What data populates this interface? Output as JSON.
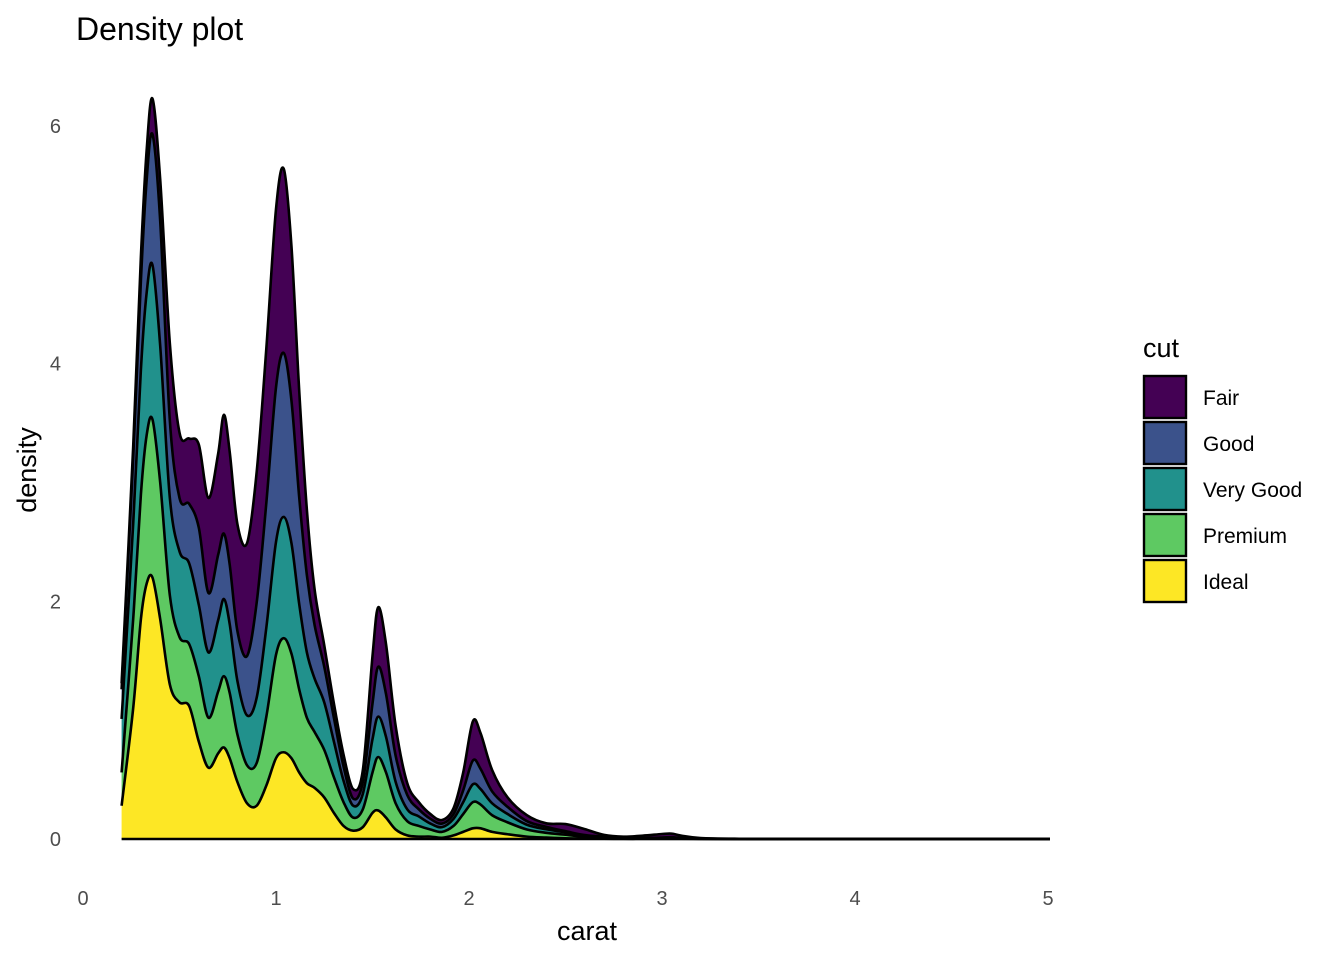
{
  "chart_data": {
    "type": "area",
    "stacked": true,
    "title": "Density plot",
    "xlabel": "carat",
    "ylabel": "density",
    "xlim": [
      0,
      5
    ],
    "ylim": [
      0,
      6.2
    ],
    "x_ticks": [
      0,
      1,
      2,
      3,
      4,
      5
    ],
    "y_ticks": [
      0,
      2,
      4,
      6
    ],
    "grid": false,
    "legend": {
      "title": "cut",
      "position": "right"
    },
    "x": [
      0.2,
      0.26,
      0.3,
      0.33,
      0.36,
      0.4,
      0.45,
      0.5,
      0.55,
      0.6,
      0.65,
      0.7,
      0.73,
      0.76,
      0.8,
      0.85,
      0.9,
      0.95,
      1.0,
      1.04,
      1.08,
      1.12,
      1.16,
      1.2,
      1.25,
      1.3,
      1.35,
      1.4,
      1.45,
      1.5,
      1.53,
      1.57,
      1.62,
      1.68,
      1.74,
      1.8,
      1.86,
      1.92,
      1.97,
      2.02,
      2.06,
      2.12,
      2.2,
      2.3,
      2.4,
      2.5,
      2.6,
      2.7,
      2.8,
      2.9,
      3.0,
      3.05,
      3.1,
      3.2,
      3.4,
      3.7,
      4.0,
      4.5,
      5.01
    ],
    "series": [
      {
        "name": "Ideal",
        "color": "#fde725",
        "values": [
          0.28,
          1.1,
          1.85,
          2.15,
          2.2,
          1.85,
          1.3,
          1.15,
          1.12,
          0.82,
          0.6,
          0.72,
          0.77,
          0.68,
          0.48,
          0.3,
          0.28,
          0.45,
          0.68,
          0.73,
          0.68,
          0.56,
          0.47,
          0.43,
          0.35,
          0.22,
          0.11,
          0.07,
          0.1,
          0.22,
          0.24,
          0.18,
          0.08,
          0.03,
          0.02,
          0.02,
          0.01,
          0.03,
          0.06,
          0.09,
          0.09,
          0.06,
          0.04,
          0.02,
          0.012,
          0.006,
          0.003,
          0.002,
          0.001,
          0.001,
          0.001,
          0.001,
          0.001,
          0,
          0,
          0,
          0,
          0,
          0
        ]
      },
      {
        "name": "Premium",
        "color": "#5ec962",
        "values": [
          0.28,
          0.75,
          1.05,
          1.25,
          1.33,
          1.15,
          0.75,
          0.55,
          0.52,
          0.55,
          0.42,
          0.52,
          0.6,
          0.55,
          0.4,
          0.32,
          0.36,
          0.58,
          0.87,
          0.96,
          0.88,
          0.7,
          0.55,
          0.47,
          0.4,
          0.3,
          0.2,
          0.11,
          0.15,
          0.34,
          0.45,
          0.38,
          0.22,
          0.12,
          0.09,
          0.06,
          0.05,
          0.08,
          0.15,
          0.22,
          0.2,
          0.14,
          0.1,
          0.06,
          0.04,
          0.03,
          0.015,
          0.008,
          0.004,
          0.003,
          0.004,
          0.005,
          0.003,
          0.001,
          0,
          0,
          0,
          0,
          0
        ]
      },
      {
        "name": "Very Good",
        "color": "#21918c",
        "values": [
          0.45,
          0.8,
          1.05,
          1.2,
          1.3,
          1.15,
          0.82,
          0.72,
          0.68,
          0.6,
          0.55,
          0.6,
          0.65,
          0.58,
          0.45,
          0.42,
          0.55,
          0.75,
          0.95,
          1.02,
          0.93,
          0.72,
          0.55,
          0.45,
          0.4,
          0.3,
          0.18,
          0.1,
          0.13,
          0.28,
          0.34,
          0.3,
          0.18,
          0.1,
          0.08,
          0.05,
          0.04,
          0.06,
          0.1,
          0.15,
          0.13,
          0.1,
          0.07,
          0.04,
          0.03,
          0.02,
          0.01,
          0.006,
          0.003,
          0.002,
          0.003,
          0.004,
          0.002,
          0.001,
          0,
          0,
          0,
          0,
          0
        ]
      },
      {
        "name": "Good",
        "color": "#3b528b",
        "values": [
          0.25,
          0.55,
          0.75,
          0.95,
          1.1,
          1.05,
          0.65,
          0.45,
          0.5,
          0.65,
          0.5,
          0.55,
          0.55,
          0.5,
          0.42,
          0.5,
          0.8,
          1.05,
          1.3,
          1.38,
          1.2,
          0.9,
          0.65,
          0.45,
          0.3,
          0.2,
          0.12,
          0.06,
          0.1,
          0.3,
          0.42,
          0.36,
          0.22,
          0.12,
          0.06,
          0.04,
          0.03,
          0.04,
          0.1,
          0.2,
          0.17,
          0.1,
          0.06,
          0.03,
          0.02,
          0.01,
          0.005,
          0.003,
          0.002,
          0.002,
          0.004,
          0.005,
          0.002,
          0.001,
          0,
          0,
          0,
          0,
          0
        ]
      },
      {
        "name": "Fair",
        "color": "#440154",
        "values": [
          0.05,
          0.1,
          0.2,
          0.25,
          0.3,
          0.35,
          0.65,
          0.55,
          0.55,
          0.7,
          0.8,
          0.85,
          1.0,
          0.95,
          0.9,
          0.95,
          1.1,
          1.3,
          1.5,
          1.55,
          1.3,
          0.9,
          0.55,
          0.3,
          0.18,
          0.12,
          0.1,
          0.08,
          0.1,
          0.4,
          0.5,
          0.42,
          0.25,
          0.1,
          0.06,
          0.04,
          0.03,
          0.05,
          0.15,
          0.33,
          0.3,
          0.18,
          0.08,
          0.05,
          0.03,
          0.06,
          0.05,
          0.015,
          0.01,
          0.02,
          0.03,
          0.03,
          0.02,
          0.005,
          0.002,
          0.001,
          0.001,
          0.001,
          0.001
        ]
      }
    ]
  }
}
